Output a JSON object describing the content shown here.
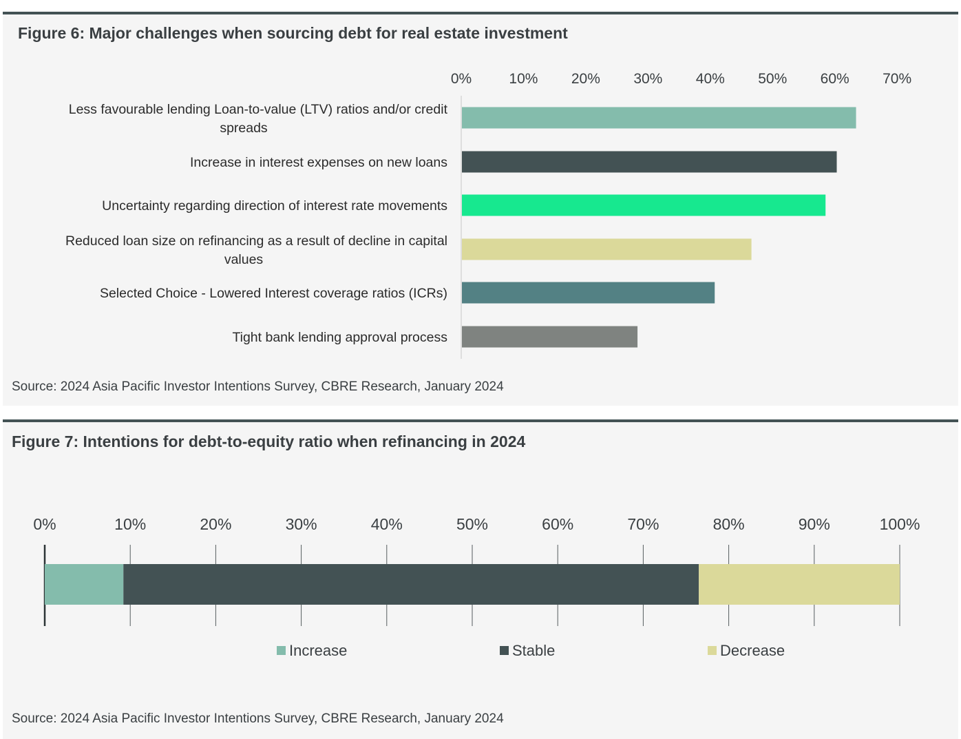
{
  "figures": [
    {
      "title": "Figure 6:  Major challenges when sourcing debt for real estate investment",
      "source": "Source: 2024 Asia Pacific Investor Intentions Survey, CBRE Research, January 2024",
      "chart_data": {
        "type": "bar",
        "orientation": "horizontal",
        "title": "Figure 6:  Major challenges when sourcing debt for real estate investment",
        "xlabel": "",
        "ylabel": "",
        "xlim": [
          0,
          70
        ],
        "x_ticks": [
          "0%",
          "10%",
          "20%",
          "30%",
          "40%",
          "50%",
          "60%",
          "70%"
        ],
        "x_tick_values": [
          0,
          10,
          20,
          30,
          40,
          50,
          60,
          70
        ],
        "tick_position": "top",
        "grid": false,
        "legend": "none",
        "categories": [
          [
            "Less favourable lending Loan-to-value (LTV) ratios and/or credit",
            "spreads"
          ],
          [
            "Increase in interest expenses on new loans"
          ],
          [
            "Uncertainty regarding direction of interest rate movements"
          ],
          [
            "Reduced loan size on refinancing as a result of decline in capital",
            "values"
          ],
          [
            "Selected Choice - Lowered Interest coverage ratios (ICRs)"
          ],
          [
            "Tight bank lending approval process"
          ]
        ],
        "values": [
          63.3,
          60.2,
          58.4,
          46.5,
          40.6,
          28.2
        ],
        "colors": [
          "#84bcac",
          "#435254",
          "#17e88f",
          "#dbd99a",
          "#538184",
          "#7f8380"
        ]
      }
    },
    {
      "title": "Figure 7:  Intentions for debt-to-equity ratio when refinancing in 2024",
      "source": "Source: 2024 Asia Pacific Investor Intentions Survey, CBRE Research, January 2024",
      "chart_data": {
        "type": "bar",
        "orientation": "horizontal",
        "stacked": true,
        "title": "Figure 7:  Intentions for debt-to-equity ratio when refinancing in 2024",
        "xlabel": "",
        "ylabel": "",
        "xlim": [
          0,
          100
        ],
        "x_ticks": [
          "0%",
          "10%",
          "20%",
          "30%",
          "40%",
          "50%",
          "60%",
          "70%",
          "80%",
          "90%",
          "100%"
        ],
        "x_tick_values": [
          0,
          10,
          20,
          30,
          40,
          50,
          60,
          70,
          80,
          90,
          100
        ],
        "tick_position": "top",
        "grid": true,
        "legend": "bottom",
        "series": [
          {
            "name": "Increase",
            "value": 9.2,
            "color": "#84bcac"
          },
          {
            "name": "Stable",
            "value": 67.3,
            "color": "#435254"
          },
          {
            "name": "Decrease",
            "value": 23.5,
            "color": "#dbd99a"
          }
        ]
      }
    }
  ]
}
